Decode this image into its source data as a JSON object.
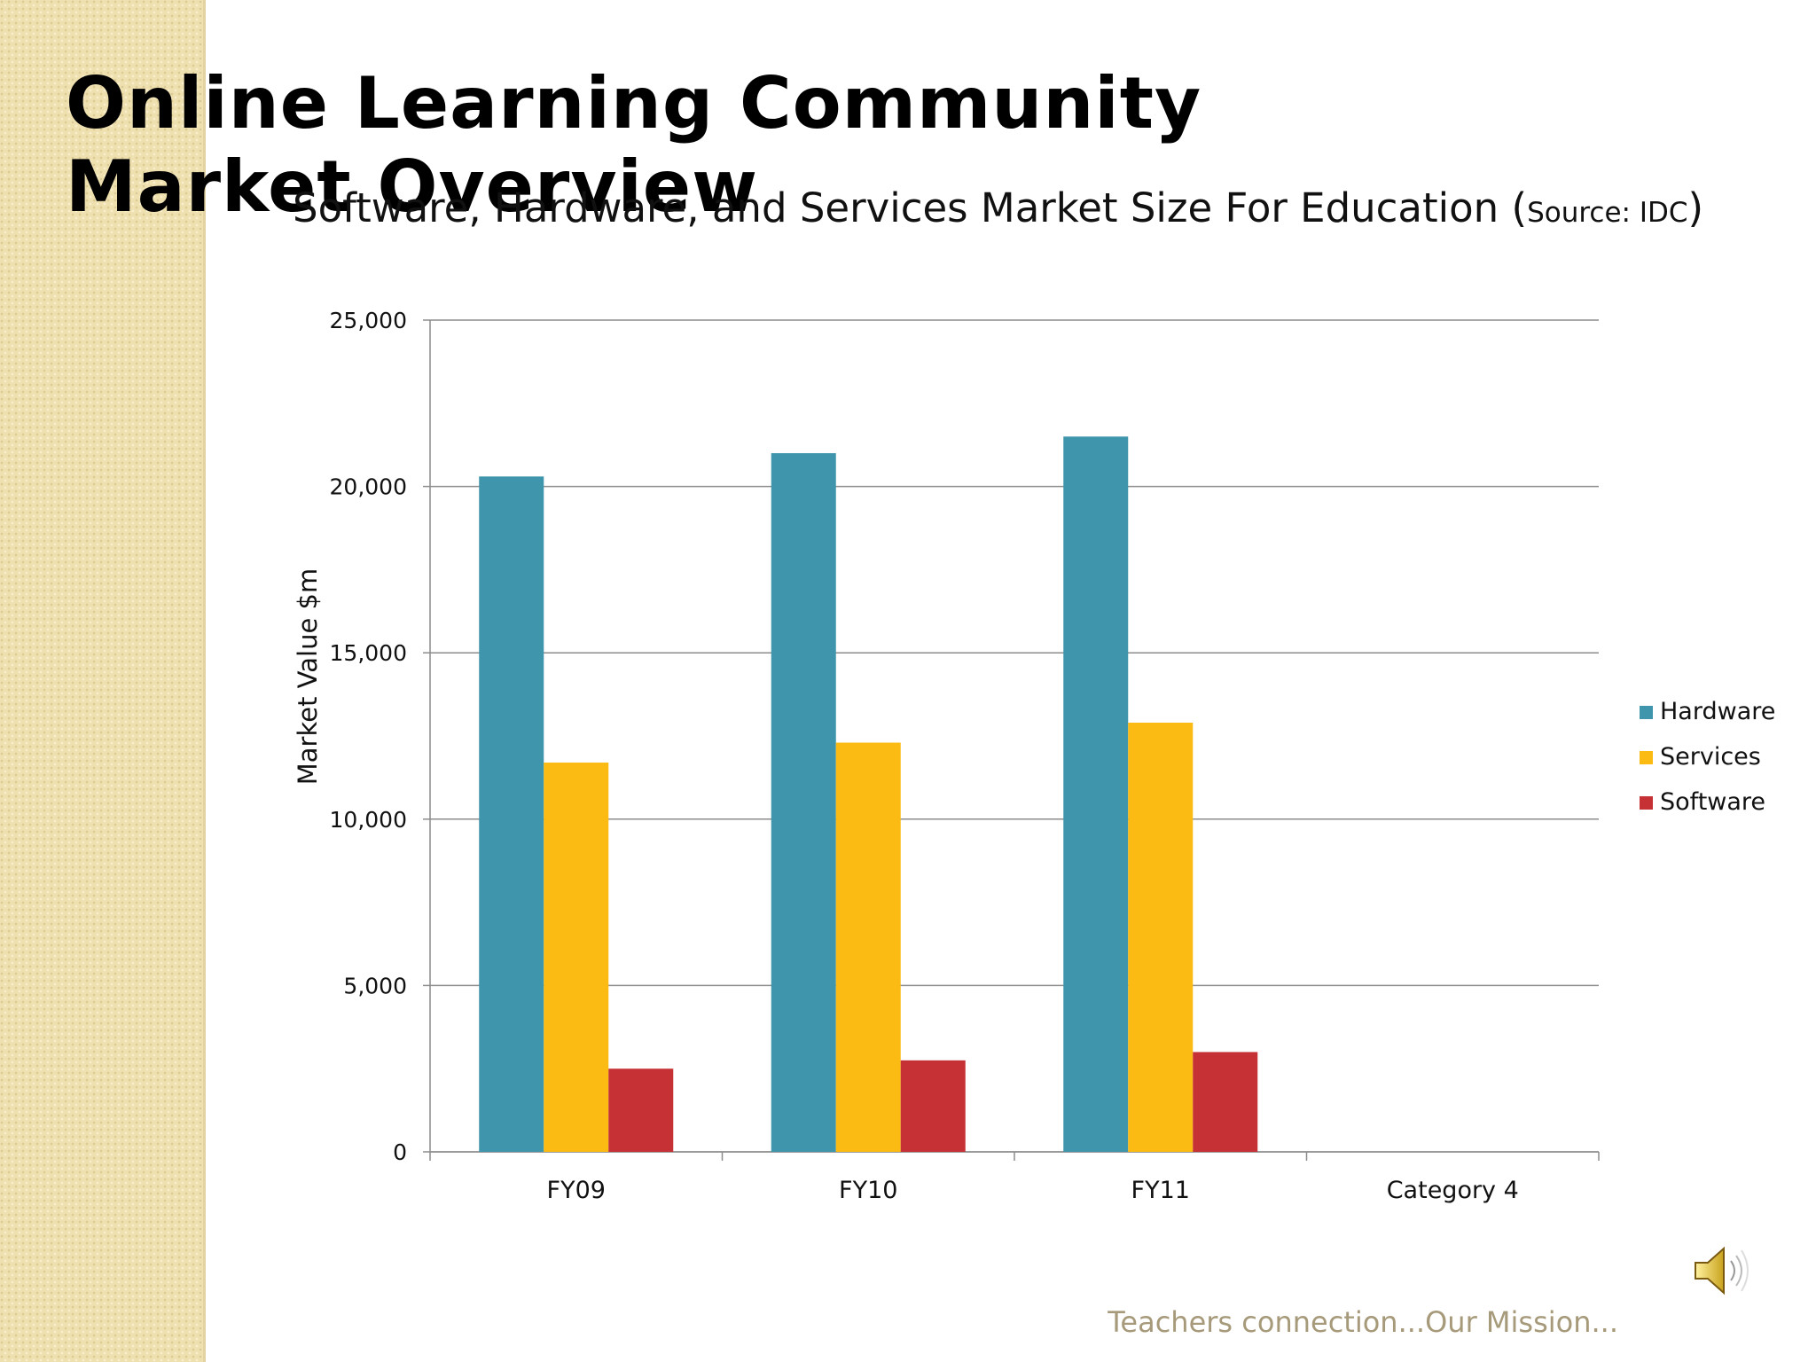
{
  "slide": {
    "title": "Online Learning Community Market Overview",
    "subtitle_main": "Software, Hardware, and Services Market Size For Education (",
    "subtitle_source": "Source: IDC",
    "subtitle_close": ")",
    "footer": "Teachers connection...Our Mission...",
    "speaker_icon": "speaker-icon"
  },
  "chart_data": {
    "type": "bar",
    "categories": [
      "FY09",
      "FY10",
      "FY11",
      "Category 4"
    ],
    "series": [
      {
        "name": "Hardware",
        "values": [
          20300,
          21000,
          21500,
          null
        ],
        "color": "#3f95ab"
      },
      {
        "name": "Services",
        "values": [
          11700,
          12300,
          12900,
          null
        ],
        "color": "#fbbb13"
      },
      {
        "name": "Software",
        "values": [
          2500,
          2750,
          3000,
          null
        ],
        "color": "#c53134"
      }
    ],
    "ylabel": "Market Value $m",
    "ylim": [
      0,
      25000
    ],
    "yticks": [
      0,
      5000,
      10000,
      15000,
      20000,
      25000
    ],
    "ytick_labels": [
      "0",
      "5,000",
      "10,000",
      "15,000",
      "20,000",
      "25,000"
    ],
    "grid": true,
    "legend_position": "right"
  }
}
